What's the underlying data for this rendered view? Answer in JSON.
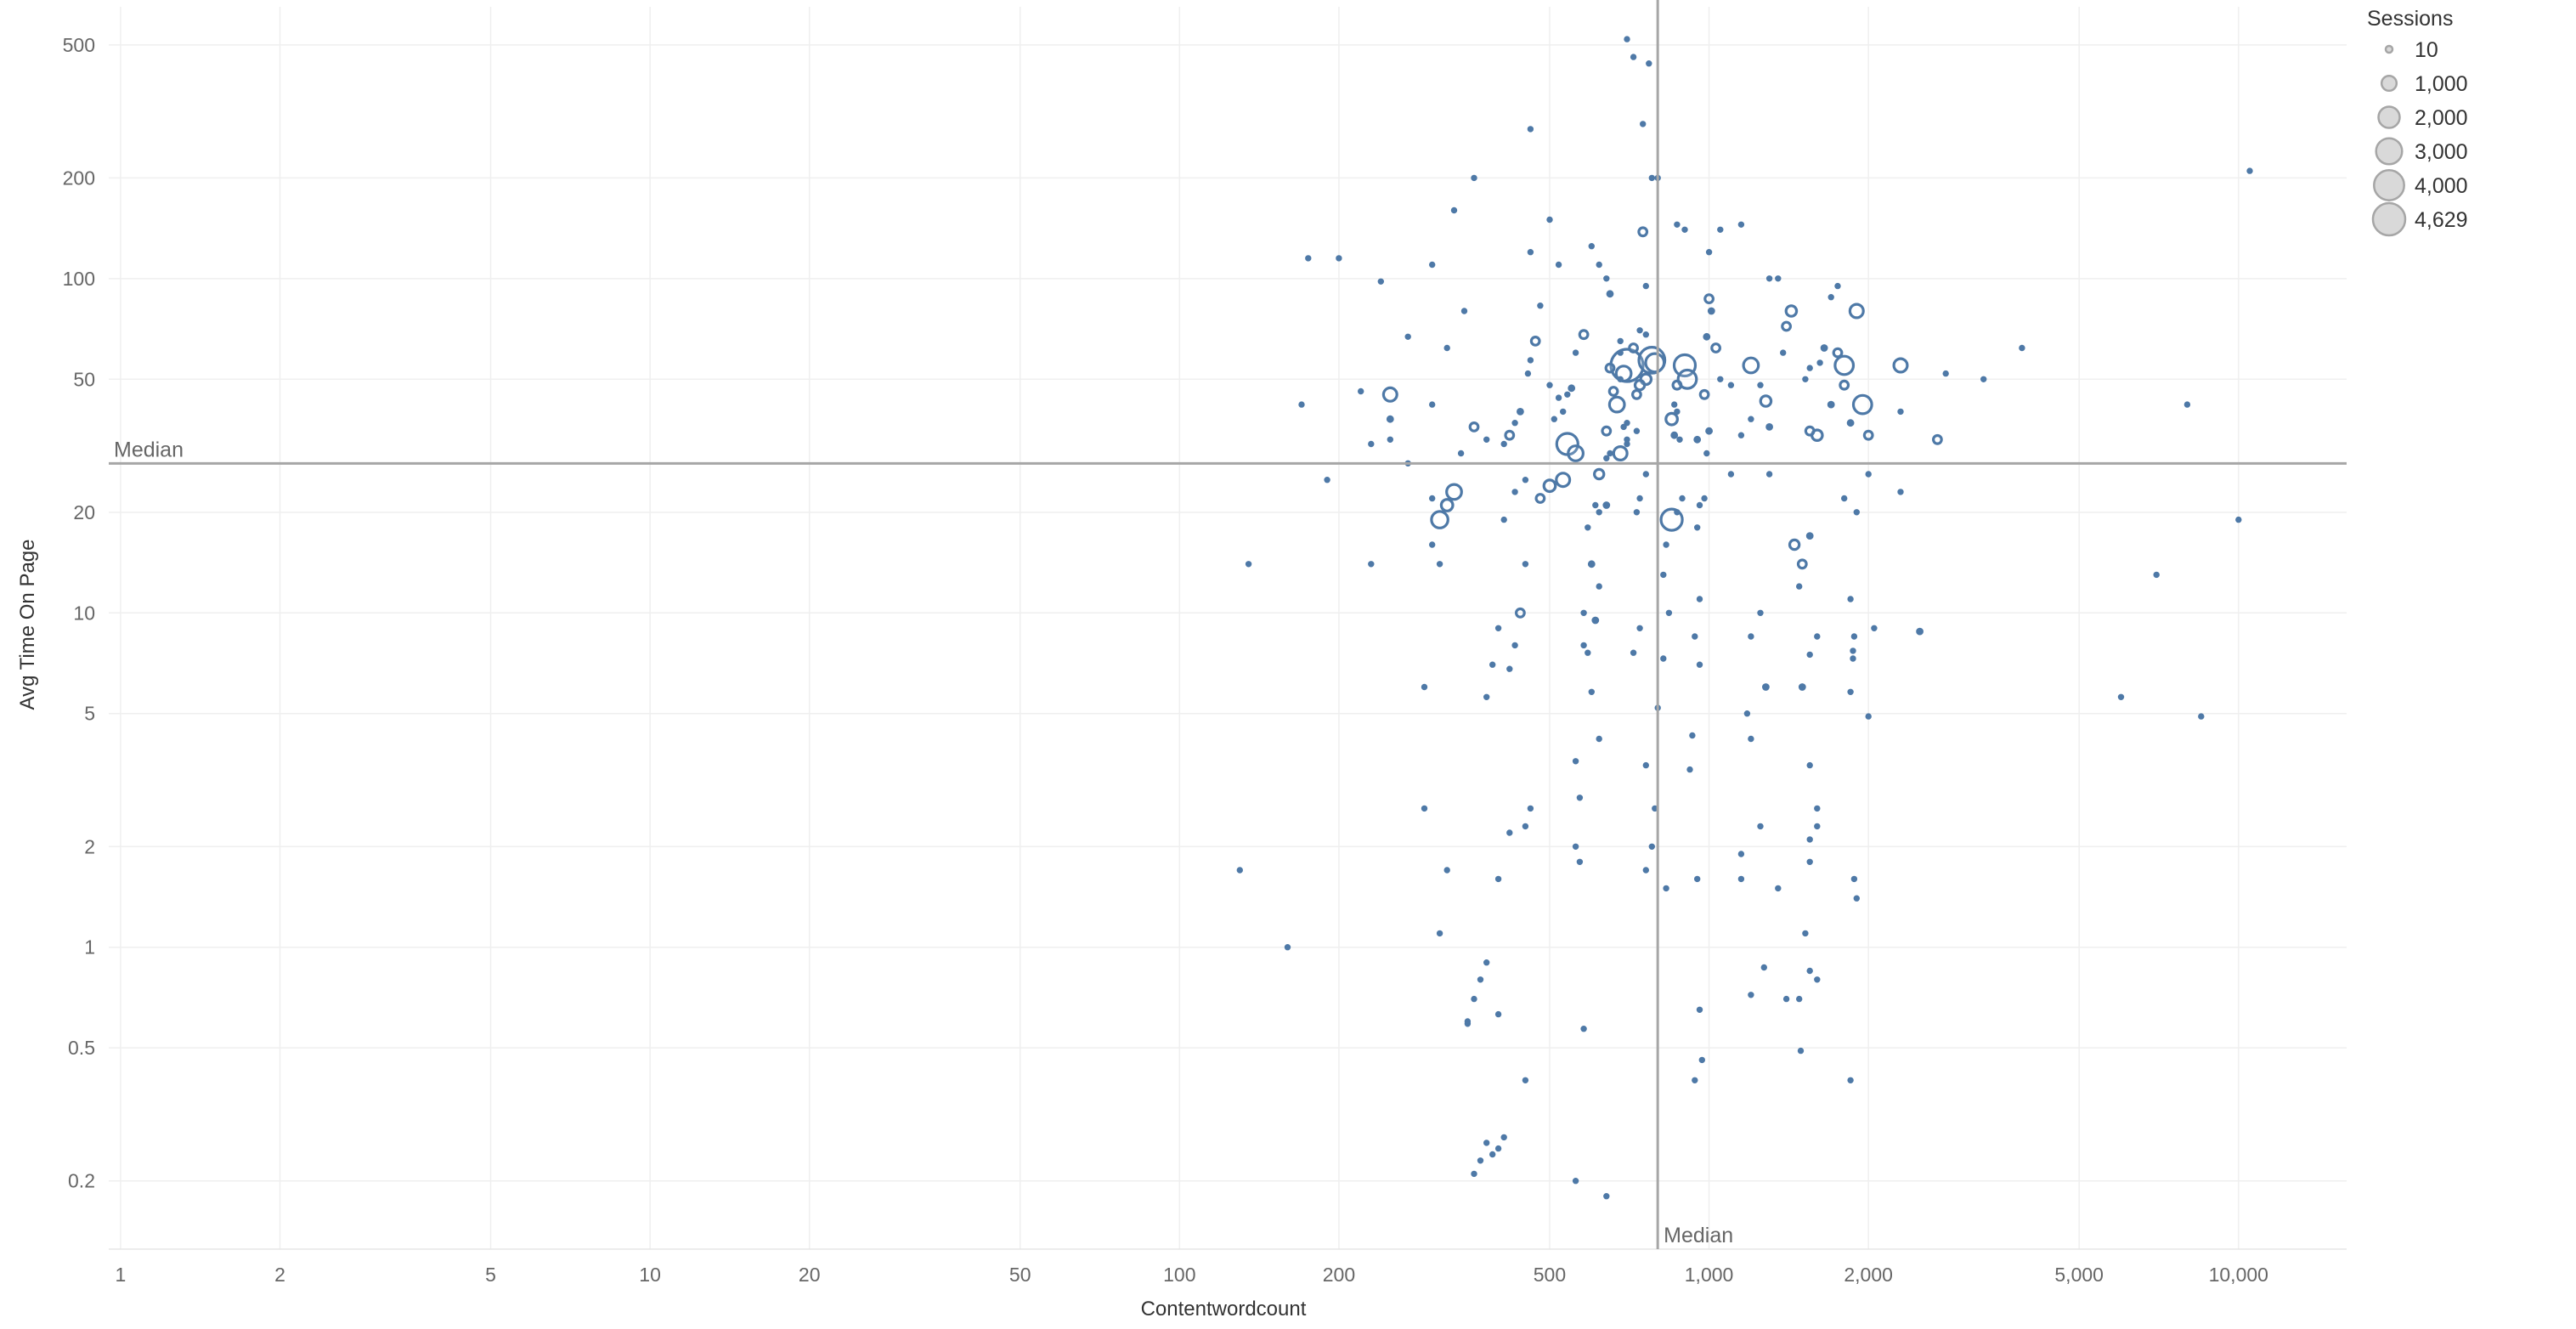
{
  "chart_data": {
    "type": "scatter",
    "xlabel": "Contentwordcount",
    "ylabel": "Avg Time On Page",
    "x_scale": "log",
    "y_scale": "log",
    "xlim": [
      0.95,
      16000
    ],
    "ylim": [
      0.125,
      650
    ],
    "grid": true,
    "x_ticks": [
      {
        "value": 1,
        "label": "1"
      },
      {
        "value": 2,
        "label": "2"
      },
      {
        "value": 5,
        "label": "5"
      },
      {
        "value": 10,
        "label": "10"
      },
      {
        "value": 20,
        "label": "20"
      },
      {
        "value": 50,
        "label": "50"
      },
      {
        "value": 100,
        "label": "100"
      },
      {
        "value": 200,
        "label": "200"
      },
      {
        "value": 500,
        "label": "500"
      },
      {
        "value": 1000,
        "label": "1,000"
      },
      {
        "value": 2000,
        "label": "2,000"
      },
      {
        "value": 5000,
        "label": "5,000"
      },
      {
        "value": 10000,
        "label": "10,000"
      }
    ],
    "y_ticks": [
      {
        "value": 0.2,
        "label": "0.2"
      },
      {
        "value": 0.5,
        "label": "0.5"
      },
      {
        "value": 1,
        "label": "1"
      },
      {
        "value": 2,
        "label": "2"
      },
      {
        "value": 5,
        "label": "5"
      },
      {
        "value": 10,
        "label": "10"
      },
      {
        "value": 20,
        "label": "20"
      },
      {
        "value": 50,
        "label": "50"
      },
      {
        "value": 100,
        "label": "100"
      },
      {
        "value": 200,
        "label": "200"
      },
      {
        "value": 500,
        "label": "500"
      }
    ],
    "reference_lines": {
      "x_median": {
        "value": 800,
        "label": "Median"
      },
      "y_median": {
        "value": 28,
        "label": "Median"
      }
    },
    "size_legend": {
      "title": "Sessions",
      "placement": "top-right",
      "items": [
        {
          "value": 10,
          "label": "10"
        },
        {
          "value": 1000,
          "label": "1,000"
        },
        {
          "value": 2000,
          "label": "2,000"
        },
        {
          "value": 3000,
          "label": "3,000"
        },
        {
          "value": 4000,
          "label": "4,000"
        },
        {
          "value": 4629,
          "label": "4,629"
        }
      ]
    },
    "colors": {
      "mark": "#4e79a7",
      "median": "#a6a6a6",
      "grid": "#efefef",
      "legend_fill": "#d9d9d9",
      "legend_stroke": "#a6a6a6"
    },
    "points": [
      [
        10500,
        210,
        60
      ],
      [
        8000,
        42,
        40
      ],
      [
        10000,
        19,
        40
      ],
      [
        7000,
        13,
        40
      ],
      [
        6000,
        5.6,
        40
      ],
      [
        8500,
        4.9,
        40
      ],
      [
        3900,
        62,
        60
      ],
      [
        3300,
        50,
        80
      ],
      [
        2800,
        52,
        120
      ],
      [
        2700,
        33,
        300
      ],
      [
        2500,
        8.8,
        200
      ],
      [
        2300,
        55,
        800
      ],
      [
        2300,
        40,
        60
      ],
      [
        2300,
        23,
        60
      ],
      [
        1900,
        80,
        800
      ],
      [
        1950,
        42,
        1500
      ],
      [
        2000,
        34,
        300
      ],
      [
        2000,
        26,
        60
      ],
      [
        2050,
        9,
        60
      ],
      [
        2000,
        4.9,
        40
      ],
      [
        1800,
        55,
        1500
      ],
      [
        1800,
        48,
        300
      ],
      [
        1850,
        37,
        200
      ],
      [
        1800,
        22,
        60
      ],
      [
        1750,
        95,
        120
      ],
      [
        1750,
        60,
        300
      ],
      [
        1900,
        20,
        40
      ],
      [
        1850,
        11,
        40
      ],
      [
        1880,
        8.5,
        40
      ],
      [
        1870,
        7.7,
        40
      ],
      [
        1870,
        7.3,
        40
      ],
      [
        1850,
        5.8,
        40
      ],
      [
        1880,
        1.6,
        40
      ],
      [
        1900,
        1.4,
        40
      ],
      [
        1850,
        0.4,
        40
      ],
      [
        1700,
        88,
        60
      ],
      [
        1650,
        62,
        200
      ],
      [
        1620,
        56,
        60
      ],
      [
        1700,
        42,
        200
      ],
      [
        1600,
        34,
        500
      ],
      [
        1550,
        35,
        300
      ],
      [
        1550,
        54,
        60
      ],
      [
        1520,
        50,
        60
      ],
      [
        1550,
        17,
        200
      ],
      [
        1500,
        14,
        300
      ],
      [
        1480,
        12,
        60
      ],
      [
        1600,
        8.5,
        60
      ],
      [
        1550,
        7.5,
        60
      ],
      [
        1500,
        6,
        200
      ],
      [
        1550,
        3.5,
        40
      ],
      [
        1600,
        2.6,
        40
      ],
      [
        1600,
        2.3,
        40
      ],
      [
        1550,
        2.1,
        40
      ],
      [
        1550,
        1.8,
        40
      ],
      [
        1520,
        1.1,
        40
      ],
      [
        1550,
        0.85,
        40
      ],
      [
        1600,
        0.8,
        40
      ],
      [
        1480,
        0.7,
        40
      ],
      [
        1490,
        0.49,
        40
      ],
      [
        1450,
        16,
        400
      ],
      [
        1430,
        80,
        500
      ],
      [
        1400,
        72,
        300
      ],
      [
        1380,
        60,
        60
      ],
      [
        1350,
        100,
        60
      ],
      [
        1300,
        100,
        60
      ],
      [
        1280,
        43,
        500
      ],
      [
        1250,
        48,
        60
      ],
      [
        1300,
        36,
        200
      ],
      [
        1300,
        26,
        40
      ],
      [
        1250,
        10,
        40
      ],
      [
        1280,
        6,
        200
      ],
      [
        1250,
        2.3,
        40
      ],
      [
        1350,
        1.5,
        40
      ],
      [
        1270,
        0.87,
        40
      ],
      [
        1200,
        0.72,
        40
      ],
      [
        1400,
        0.7,
        40
      ],
      [
        1200,
        55,
        1000
      ],
      [
        1200,
        38,
        60
      ],
      [
        1150,
        34,
        60
      ],
      [
        1100,
        48,
        60
      ],
      [
        1150,
        145,
        60
      ],
      [
        1100,
        26,
        40
      ],
      [
        1200,
        8.5,
        40
      ],
      [
        1180,
        5,
        40
      ],
      [
        1200,
        4.2,
        40
      ],
      [
        1150,
        1.9,
        40
      ],
      [
        1150,
        1.6,
        40
      ],
      [
        1050,
        50,
        60
      ],
      [
        1000,
        120,
        60
      ],
      [
        1050,
        140,
        60
      ],
      [
        1030,
        62,
        300
      ],
      [
        1000,
        87,
        300
      ],
      [
        1010,
        80,
        200
      ],
      [
        990,
        67,
        200
      ],
      [
        980,
        45,
        300
      ],
      [
        1000,
        35,
        200
      ],
      [
        990,
        30,
        60
      ],
      [
        950,
        33,
        200
      ],
      [
        980,
        22,
        60
      ],
      [
        960,
        21,
        60
      ],
      [
        950,
        18,
        40
      ],
      [
        960,
        11,
        60
      ],
      [
        940,
        8.5,
        40
      ],
      [
        960,
        7,
        40
      ],
      [
        930,
        4.3,
        40
      ],
      [
        920,
        3.4,
        40
      ],
      [
        950,
        1.6,
        40
      ],
      [
        960,
        0.65,
        40
      ],
      [
        970,
        0.46,
        40
      ],
      [
        940,
        0.4,
        40
      ],
      [
        900,
        140,
        60
      ],
      [
        870,
        145,
        60
      ],
      [
        900,
        55,
        2000
      ],
      [
        910,
        50,
        1500
      ],
      [
        870,
        48,
        300
      ],
      [
        860,
        42,
        60
      ],
      [
        850,
        38,
        600
      ],
      [
        860,
        34,
        200
      ],
      [
        880,
        33,
        60
      ],
      [
        870,
        40,
        60
      ],
      [
        890,
        22,
        60
      ],
      [
        870,
        20,
        60
      ],
      [
        850,
        19,
        2000
      ],
      [
        830,
        16,
        60
      ],
      [
        820,
        13,
        60
      ],
      [
        840,
        10,
        60
      ],
      [
        820,
        7.3,
        60
      ],
      [
        800,
        200,
        60
      ],
      [
        780,
        200,
        60
      ],
      [
        800,
        5.2,
        40
      ],
      [
        790,
        2.6,
        40
      ],
      [
        830,
        1.5,
        40
      ],
      [
        770,
        440,
        60
      ],
      [
        750,
        290,
        60
      ],
      [
        750,
        138,
        300
      ],
      [
        760,
        95,
        60
      ],
      [
        740,
        70,
        60
      ],
      [
        760,
        68,
        60
      ],
      [
        720,
        62,
        300
      ],
      [
        780,
        57,
        3000
      ],
      [
        790,
        56,
        1500
      ],
      [
        760,
        50,
        500
      ],
      [
        740,
        48,
        400
      ],
      [
        730,
        45,
        300
      ],
      [
        700,
        55,
        4629
      ],
      [
        690,
        52,
        1000
      ],
      [
        680,
        60,
        60
      ],
      [
        670,
        42,
        1000
      ],
      [
        680,
        50,
        60
      ],
      [
        660,
        46,
        300
      ],
      [
        650,
        54,
        300
      ],
      [
        700,
        37,
        60
      ],
      [
        640,
        35,
        300
      ],
      [
        650,
        30,
        60
      ],
      [
        700,
        33,
        60
      ],
      [
        680,
        30,
        800
      ],
      [
        640,
        29,
        60
      ],
      [
        620,
        26,
        400
      ],
      [
        640,
        21,
        200
      ],
      [
        610,
        21,
        60
      ],
      [
        620,
        20,
        60
      ],
      [
        590,
        18,
        60
      ],
      [
        600,
        14,
        200
      ],
      [
        620,
        12,
        60
      ],
      [
        580,
        10,
        60
      ],
      [
        610,
        9.5,
        200
      ],
      [
        580,
        8,
        60
      ],
      [
        590,
        7.6,
        60
      ],
      [
        600,
        5.8,
        40
      ],
      [
        620,
        4.2,
        40
      ],
      [
        560,
        3.6,
        40
      ],
      [
        570,
        2.8,
        40
      ],
      [
        560,
        2,
        40
      ],
      [
        570,
        1.8,
        40
      ],
      [
        580,
        0.57,
        40
      ],
      [
        560,
        0.2,
        40
      ],
      [
        640,
        0.18,
        40
      ],
      [
        700,
        520,
        60
      ],
      [
        720,
        460,
        60
      ],
      [
        730,
        35,
        60
      ],
      [
        760,
        26,
        60
      ],
      [
        740,
        22,
        60
      ],
      [
        730,
        20,
        60
      ],
      [
        740,
        9,
        60
      ],
      [
        720,
        7.6,
        60
      ],
      [
        760,
        3.5,
        40
      ],
      [
        780,
        2,
        40
      ],
      [
        760,
        1.7,
        40
      ],
      [
        700,
        32,
        60
      ],
      [
        690,
        36,
        60
      ],
      [
        650,
        90,
        200
      ],
      [
        680,
        65,
        60
      ],
      [
        640,
        100,
        60
      ],
      [
        620,
        110,
        60
      ],
      [
        600,
        125,
        60
      ],
      [
        580,
        68,
        300
      ],
      [
        560,
        60,
        60
      ],
      [
        550,
        47,
        200
      ],
      [
        540,
        45,
        60
      ],
      [
        520,
        44,
        60
      ],
      [
        530,
        40,
        60
      ],
      [
        510,
        38,
        60
      ],
      [
        500,
        48,
        60
      ],
      [
        520,
        110,
        60
      ],
      [
        500,
        150,
        60
      ],
      [
        480,
        83,
        60
      ],
      [
        470,
        65,
        300
      ],
      [
        460,
        57,
        60
      ],
      [
        455,
        52,
        60
      ],
      [
        440,
        40,
        200
      ],
      [
        430,
        37,
        60
      ],
      [
        420,
        34,
        300
      ],
      [
        410,
        32,
        60
      ],
      [
        460,
        120,
        60
      ],
      [
        460,
        280,
        60
      ],
      [
        540,
        32,
        2000
      ],
      [
        560,
        30,
        1000
      ],
      [
        530,
        25,
        800
      ],
      [
        500,
        24,
        600
      ],
      [
        480,
        22,
        300
      ],
      [
        450,
        25,
        60
      ],
      [
        430,
        23,
        60
      ],
      [
        410,
        19,
        60
      ],
      [
        450,
        14,
        60
      ],
      [
        440,
        10,
        300
      ],
      [
        430,
        8,
        60
      ],
      [
        420,
        6.8,
        40
      ],
      [
        400,
        9,
        60
      ],
      [
        390,
        7,
        40
      ],
      [
        380,
        5.6,
        40
      ],
      [
        460,
        2.6,
        40
      ],
      [
        450,
        2.3,
        40
      ],
      [
        420,
        2.2,
        40
      ],
      [
        400,
        1.6,
        40
      ],
      [
        380,
        0.9,
        40
      ],
      [
        370,
        0.8,
        40
      ],
      [
        360,
        0.7,
        40
      ],
      [
        350,
        0.6,
        40
      ],
      [
        450,
        0.4,
        40
      ],
      [
        410,
        0.27,
        40
      ],
      [
        400,
        0.25,
        40
      ],
      [
        390,
        0.24,
        40
      ],
      [
        380,
        0.26,
        40
      ],
      [
        360,
        0.21,
        40
      ],
      [
        370,
        0.23,
        40
      ],
      [
        400,
        0.63,
        40
      ],
      [
        350,
        0.59,
        40
      ],
      [
        380,
        33,
        60
      ],
      [
        360,
        36,
        300
      ],
      [
        340,
        30,
        60
      ],
      [
        330,
        23,
        1000
      ],
      [
        320,
        21,
        600
      ],
      [
        310,
        19,
        1200
      ],
      [
        300,
        22,
        60
      ],
      [
        300,
        16,
        60
      ],
      [
        310,
        14,
        60
      ],
      [
        290,
        6,
        40
      ],
      [
        290,
        2.6,
        40
      ],
      [
        320,
        1.7,
        40
      ],
      [
        310,
        1.1,
        40
      ],
      [
        270,
        67,
        60
      ],
      [
        250,
        38,
        200
      ],
      [
        230,
        32,
        60
      ],
      [
        220,
        46,
        60
      ],
      [
        230,
        14,
        60
      ],
      [
        300,
        110,
        60
      ],
      [
        240,
        98,
        60
      ],
      [
        200,
        115,
        60
      ],
      [
        175,
        115,
        60
      ],
      [
        170,
        42,
        60
      ],
      [
        190,
        25,
        60
      ],
      [
        135,
        14,
        40
      ],
      [
        130,
        1.7,
        40
      ],
      [
        160,
        1,
        40
      ],
      [
        360,
        200,
        60
      ],
      [
        330,
        160,
        60
      ],
      [
        345,
        80,
        60
      ],
      [
        320,
        62,
        60
      ],
      [
        300,
        42,
        60
      ],
      [
        250,
        45,
        800
      ],
      [
        250,
        33,
        60
      ],
      [
        270,
        28,
        60
      ]
    ]
  }
}
